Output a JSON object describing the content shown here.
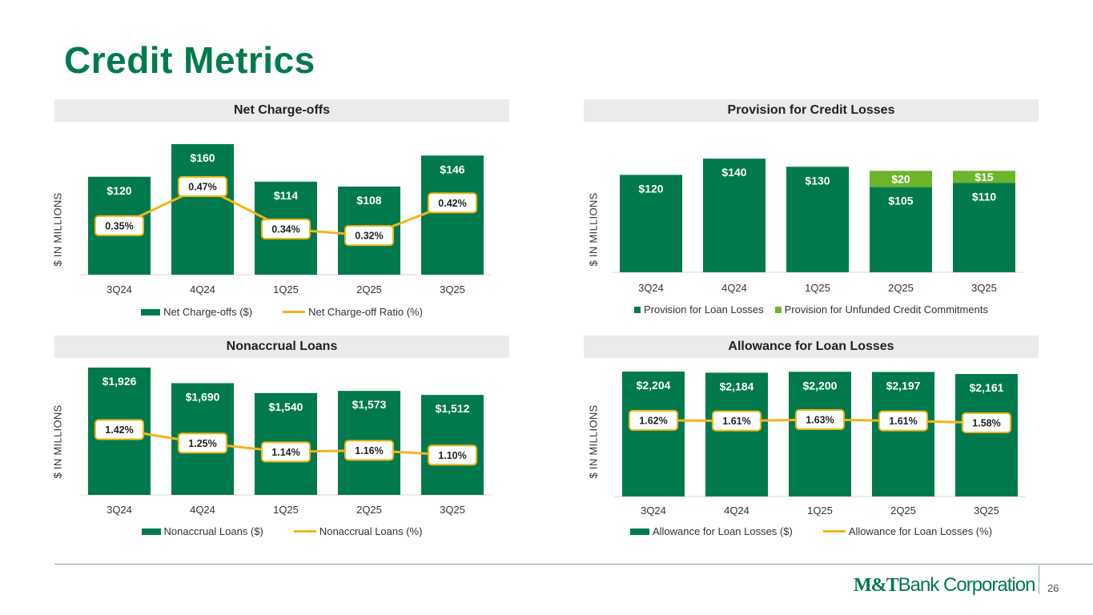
{
  "page": {
    "title": "Credit Metrics",
    "page_number": "26",
    "logo": {
      "part1": "M&T",
      "part2": "Bank Corporation"
    }
  },
  "colors": {
    "green": "#007a4c",
    "light_green": "#6cb52d",
    "gold": "#f2b51b",
    "header_bg": "#ebebeb"
  },
  "chart_data": [
    {
      "id": "ncos",
      "type": "bar",
      "title": "Net Charge-offs",
      "ylabel": "$ IN MILLIONS",
      "categories": [
        "3Q24",
        "4Q24",
        "1Q25",
        "2Q25",
        "3Q25"
      ],
      "ylim": [
        0,
        160
      ],
      "pct_range": [
        0.2,
        0.6
      ],
      "series": [
        {
          "name": "Net Charge-offs ($)",
          "kind": "bar",
          "values": [
            120,
            160,
            114,
            108,
            146
          ],
          "labels": [
            "$120",
            "$160",
            "$114",
            "$108",
            "$146"
          ]
        },
        {
          "name": "Net Charge-off Ratio (%)",
          "kind": "line",
          "values": [
            0.35,
            0.47,
            0.34,
            0.32,
            0.42
          ],
          "labels": [
            "0.35%",
            "0.47%",
            "0.34%",
            "0.32%",
            "0.42%"
          ]
        }
      ]
    },
    {
      "id": "provision",
      "type": "bar",
      "title": "Provision for Credit Losses",
      "ylabel": "$ IN MILLIONS",
      "categories": [
        "3Q24",
        "4Q24",
        "1Q25",
        "2Q25",
        "3Q25"
      ],
      "ylim": [
        0,
        150
      ],
      "stacked": true,
      "series": [
        {
          "name": "Provision for Loan Losses",
          "kind": "bar",
          "values": [
            120,
            140,
            130,
            105,
            110
          ],
          "labels": [
            "$120",
            "$140",
            "$130",
            "$105",
            "$110"
          ]
        },
        {
          "name": "Provision for Unfunded Credit Commitments",
          "kind": "bar",
          "values": [
            0,
            0,
            0,
            20,
            15
          ],
          "labels": [
            "",
            "",
            "",
            "$20",
            "$15"
          ]
        }
      ]
    },
    {
      "id": "nonaccrual",
      "type": "bar",
      "title": "Nonaccrual Loans",
      "ylabel": "$ IN MILLIONS",
      "categories": [
        "3Q24",
        "4Q24",
        "1Q25",
        "2Q25",
        "3Q25"
      ],
      "ylim": [
        0,
        1926
      ],
      "pct_range": [
        0.6,
        2.2
      ],
      "series": [
        {
          "name": "Nonaccrual Loans ($)",
          "kind": "bar",
          "values": [
            1926,
            1690,
            1540,
            1573,
            1512
          ],
          "labels": [
            "$1,926",
            "$1,690",
            "$1,540",
            "$1,573",
            "$1,512"
          ]
        },
        {
          "name": "Nonaccrual Loans (%)",
          "kind": "line",
          "values": [
            1.42,
            1.25,
            1.14,
            1.16,
            1.1
          ],
          "labels": [
            "1.42%",
            "1.25%",
            "1.14%",
            "1.16%",
            "1.10%"
          ]
        }
      ]
    },
    {
      "id": "allowance",
      "type": "bar",
      "title": "Allowance for Loan Losses",
      "ylabel": "$ IN MILLIONS",
      "categories": [
        "3Q24",
        "4Q24",
        "1Q25",
        "2Q25",
        "3Q25"
      ],
      "ylim": [
        0,
        2204
      ],
      "pct_range": [
        0.4,
        2.4
      ],
      "series": [
        {
          "name": "Allowance for Loan Losses ($)",
          "kind": "bar",
          "values": [
            2204,
            2184,
            2200,
            2197,
            2161
          ],
          "labels": [
            "$2,204",
            "$2,184",
            "$2,200",
            "$2,197",
            "$2,161"
          ]
        },
        {
          "name": "Allowance for Loan Losses (%)",
          "kind": "line",
          "values": [
            1.62,
            1.61,
            1.63,
            1.61,
            1.58
          ],
          "labels": [
            "1.62%",
            "1.61%",
            "1.63%",
            "1.61%",
            "1.58%"
          ]
        }
      ]
    }
  ]
}
